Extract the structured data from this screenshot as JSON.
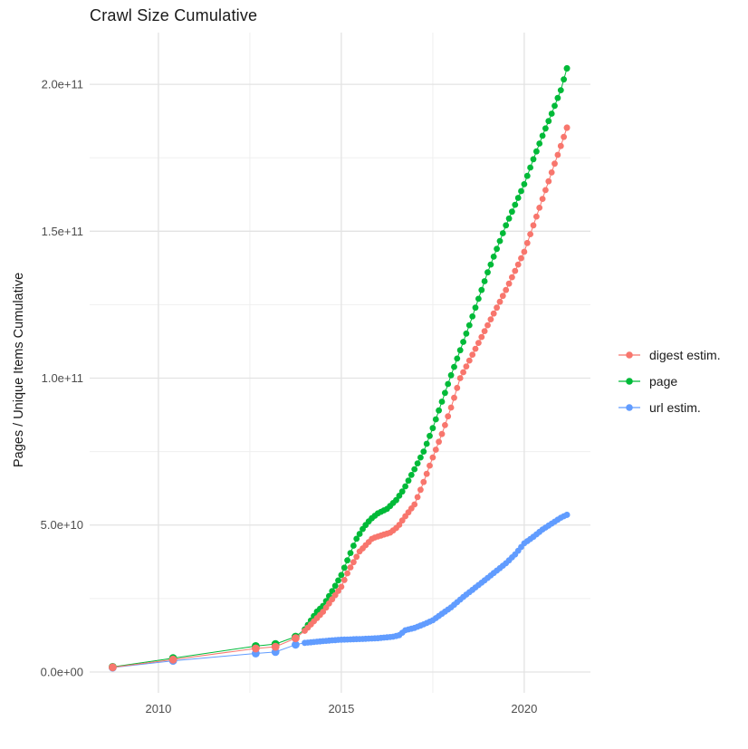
{
  "chart_data": {
    "type": "line",
    "title": "Crawl Size Cumulative",
    "xlabel": "",
    "ylabel": "Pages / Unique Items Cumulative",
    "legend_position": "right",
    "grid": {
      "major_color": "#e3e3e3",
      "minor_color": "#efefef",
      "background": "#ffffff"
    },
    "x_domain": [
      2008.12,
      2021.81
    ],
    "y_domain": [
      -7100000000,
      217600000000
    ],
    "x_ticks": [
      {
        "label": "2010",
        "value": 2010
      },
      {
        "label": "2015",
        "value": 2015
      },
      {
        "label": "2020",
        "value": 2020
      }
    ],
    "x_minor_ticks": [
      2012.5,
      2017.5
    ],
    "y_ticks": [
      {
        "label": "0.0e+00",
        "value": 0
      },
      {
        "label": "5.0e+10",
        "value": 50000000000
      },
      {
        "label": "1.0e+11",
        "value": 100000000000
      },
      {
        "label": "1.5e+11",
        "value": 150000000000
      },
      {
        "label": "2.0e+11",
        "value": 200000000000
      }
    ],
    "y_minor_ticks": [
      25000000000,
      75000000000,
      125000000000,
      175000000000
    ],
    "monthly_sampling_start": 2014.0,
    "points_per_year": 12,
    "series": [
      {
        "name": "digest estim.",
        "color": "#F8766D",
        "points": [
          [
            2008.75,
            1600000000.0
          ],
          [
            2010.4,
            4200000000.0
          ],
          [
            2012.66,
            8000000000.0
          ],
          [
            2013.2,
            8600000000.0
          ],
          [
            2013.75,
            11500000000.0
          ],
          [
            2014.0,
            14000000000.0
          ],
          [
            2014.5,
            20500000000.0
          ],
          [
            2015.0,
            29000000000.0
          ],
          [
            2015.2,
            34500000000.0
          ],
          [
            2015.5,
            41000000000.0
          ],
          [
            2015.85,
            45500000000.0
          ],
          [
            2016.1,
            46500000000.0
          ],
          [
            2016.35,
            47500000000.0
          ],
          [
            2016.55,
            49500000000.0
          ],
          [
            2016.75,
            53000000000.0
          ],
          [
            2017.0,
            57000000000.0
          ],
          [
            2017.2,
            63000000000.0
          ],
          [
            2017.5,
            73000000000.0
          ],
          [
            2017.75,
            81000000000.0
          ],
          [
            2018.0,
            90000000000.0
          ],
          [
            2018.25,
            100000000000.0
          ],
          [
            2018.5,
            106000000000.0
          ],
          [
            2018.75,
            112000000000.0
          ],
          [
            2019.0,
            118000000000.0
          ],
          [
            2019.25,
            124000000000.0
          ],
          [
            2019.5,
            130000000000.0
          ],
          [
            2019.75,
            136500000000.0
          ],
          [
            2020.0,
            143000000000.0
          ],
          [
            2020.25,
            152000000000.0
          ],
          [
            2020.5,
            161000000000.0
          ],
          [
            2020.75,
            170000000000.0
          ],
          [
            2021.0,
            179000000000.0
          ],
          [
            2021.17,
            185300000000.0
          ]
        ]
      },
      {
        "name": "page",
        "color": "#00BA38",
        "points": [
          [
            2008.75,
            1700000000.0
          ],
          [
            2010.4,
            4700000000.0
          ],
          [
            2012.66,
            8800000000.0
          ],
          [
            2013.2,
            9500000000.0
          ],
          [
            2013.75,
            12000000000.0
          ],
          [
            2014.0,
            14500000000.0
          ],
          [
            2014.33,
            20500000000.0
          ],
          [
            2014.5,
            22500000000.0
          ],
          [
            2014.75,
            27500000000.0
          ],
          [
            2015.0,
            33000000000.0
          ],
          [
            2015.2,
            39000000000.0
          ],
          [
            2015.4,
            45000000000.0
          ],
          [
            2015.6,
            49000000000.0
          ],
          [
            2015.8,
            52000000000.0
          ],
          [
            2016.0,
            54000000000.0
          ],
          [
            2016.25,
            55500000000.0
          ],
          [
            2016.5,
            58500000000.0
          ],
          [
            2016.7,
            62000000000.0
          ],
          [
            2016.85,
            65500000000.0
          ],
          [
            2017.0,
            69000000000.0
          ],
          [
            2017.25,
            75000000000.0
          ],
          [
            2017.5,
            83000000000.0
          ],
          [
            2017.75,
            92000000000.0
          ],
          [
            2018.0,
            101000000000.0
          ],
          [
            2018.25,
            109500000000.0
          ],
          [
            2018.5,
            118000000000.0
          ],
          [
            2018.75,
            127000000000.0
          ],
          [
            2019.0,
            136000000000.0
          ],
          [
            2019.25,
            144000000000.0
          ],
          [
            2019.5,
            152000000000.0
          ],
          [
            2019.75,
            159000000000.0
          ],
          [
            2020.0,
            166000000000.0
          ],
          [
            2020.25,
            174500000000.0
          ],
          [
            2020.5,
            182500000000.0
          ],
          [
            2020.75,
            190000000000.0
          ],
          [
            2021.0,
            198000000000.0
          ],
          [
            2021.17,
            205500000000.0
          ]
        ]
      },
      {
        "name": "url estim.",
        "color": "#619CFF",
        "points": [
          [
            2008.75,
            1500000000.0
          ],
          [
            2010.4,
            3800000000.0
          ],
          [
            2012.66,
            6300000000.0
          ],
          [
            2013.2,
            6800000000.0
          ],
          [
            2013.75,
            9300000000.0
          ],
          [
            2014.0,
            9900000000.0
          ],
          [
            2014.33,
            10300000000.0
          ],
          [
            2014.67,
            10700000000.0
          ],
          [
            2015.0,
            11000000000.0
          ],
          [
            2015.5,
            11200000000.0
          ],
          [
            2016.0,
            11500000000.0
          ],
          [
            2016.42,
            12000000000.0
          ],
          [
            2016.58,
            12500000000.0
          ],
          [
            2016.75,
            14200000000.0
          ],
          [
            2017.0,
            15000000000.0
          ],
          [
            2017.25,
            16200000000.0
          ],
          [
            2017.5,
            17600000000.0
          ],
          [
            2017.75,
            19800000000.0
          ],
          [
            2018.0,
            22000000000.0
          ],
          [
            2018.33,
            25500000000.0
          ],
          [
            2018.67,
            28800000000.0
          ],
          [
            2019.0,
            32000000000.0
          ],
          [
            2019.25,
            34500000000.0
          ],
          [
            2019.5,
            37000000000.0
          ],
          [
            2019.75,
            40000000000.0
          ],
          [
            2020.0,
            43800000000.0
          ],
          [
            2020.25,
            46000000000.0
          ],
          [
            2020.5,
            48500000000.0
          ],
          [
            2020.75,
            50500000000.0
          ],
          [
            2021.0,
            52500000000.0
          ],
          [
            2021.17,
            53500000000.0
          ]
        ]
      }
    ]
  }
}
